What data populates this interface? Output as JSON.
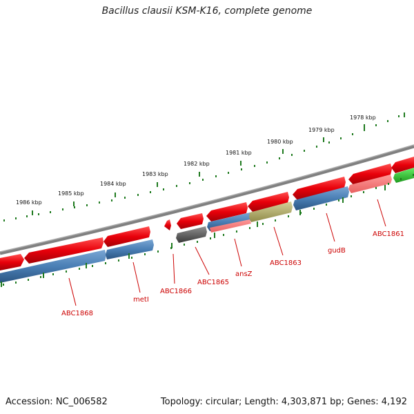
{
  "title": "Bacillus clausii KSM-K16, complete genome",
  "footer": {
    "accession": "Accession: NC_006582",
    "summary": "Topology: circular; Length: 4,303,871 bp; Genes: 4,192"
  },
  "colors": {
    "forward_gene": "#e8000a",
    "reverse_gene": "#4a7fb5",
    "gray_gene": "#595959",
    "olive_gene": "#b5b068",
    "green_gene": "#33cc33",
    "backbone": "#808080",
    "tick": "#1e7a1e",
    "label": "#cc0000"
  },
  "scale_labels": [
    "1986 kbp",
    "1985 kbp",
    "1984 kbp",
    "1983 kbp",
    "1982 kbp",
    "1981 kbp",
    "1980 kbp",
    "1979 kbp",
    "1978 kbp"
  ],
  "gene_labels": [
    "ABC1868",
    "metI",
    "ABC1866",
    "ABC1865",
    "ansZ",
    "ABC1863",
    "gudB",
    "ABC1861"
  ]
}
